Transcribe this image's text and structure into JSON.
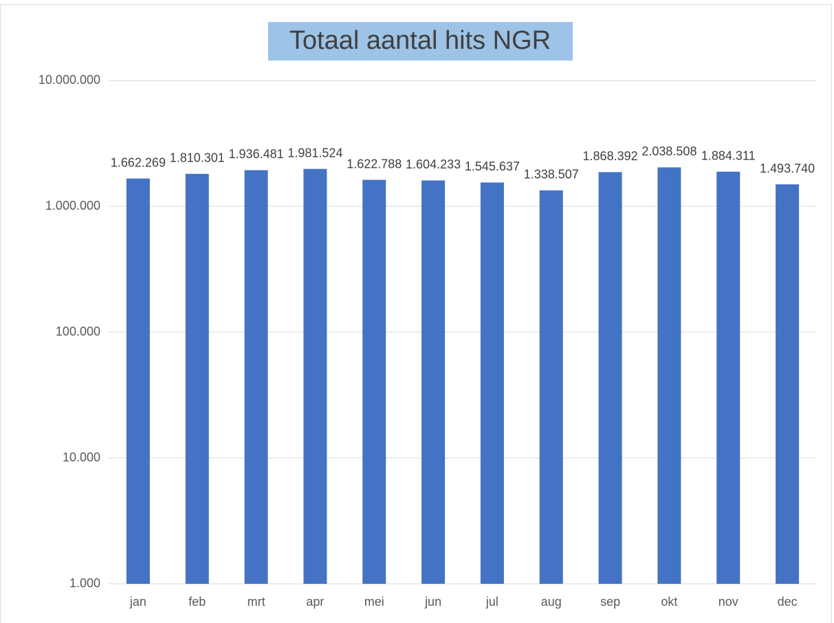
{
  "chart_data": {
    "type": "bar",
    "title": "Totaal aantal hits NGR",
    "categories": [
      "jan",
      "feb",
      "mrt",
      "apr",
      "mei",
      "jun",
      "jul",
      "aug",
      "sep",
      "okt",
      "nov",
      "dec"
    ],
    "values": [
      1662269,
      1810301,
      1936481,
      1981524,
      1622788,
      1604233,
      1545637,
      1338507,
      1868392,
      2038508,
      1884311,
      1493740
    ],
    "value_labels": [
      "1.662.269",
      "1.810.301",
      "1.936.481",
      "1.981.524",
      "1.622.788",
      "1.604.233",
      "1.545.637",
      "1.338.507",
      "1.868.392",
      "2.038.508",
      "1.884.311",
      "1.493.740"
    ],
    "color": "#4472c4",
    "log_scale": true,
    "grid": true,
    "ylim": [
      1000,
      10000000
    ],
    "yticks": [
      {
        "value": 1000,
        "label": "1.000"
      },
      {
        "value": 10000,
        "label": "10.000"
      },
      {
        "value": 100000,
        "label": "100.000"
      },
      {
        "value": 1000000,
        "label": "1.000.000"
      },
      {
        "value": 10000000,
        "label": "10.000.000"
      }
    ]
  }
}
